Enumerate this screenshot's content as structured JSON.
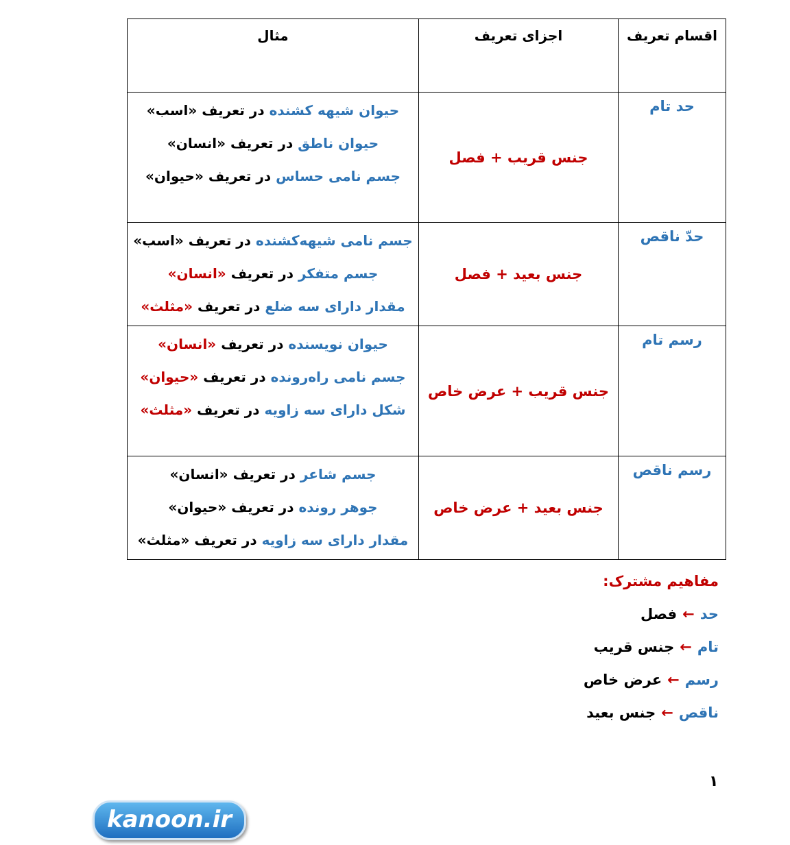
{
  "table": {
    "headers": {
      "type": "اقسام تعریف",
      "parts": "اجزای تعریف",
      "example": "مثال"
    },
    "rows": [
      {
        "type": "حد تام",
        "parts": "جنس قریب + فصل",
        "examples": [
          {
            "term": "حیوان شیهه کشنده",
            "link": "در تعریف",
            "target": "«اسب»",
            "target_color": "#000000"
          },
          {
            "term": "حیوان ناطق",
            "link": "در تعریف",
            "target": "«انسان»",
            "target_color": "#000000"
          },
          {
            "term": "جسم نامی حساس",
            "link": "در تعریف",
            "target": "«حیوان»",
            "target_color": "#000000"
          }
        ]
      },
      {
        "type": "حدّ ناقص",
        "parts": "جنس بعید + فصل",
        "examples": [
          {
            "term": "جسم نامی شیهه‌کشنده",
            "link": "در تعریف",
            "target": "«اسب»",
            "target_color": "#000000"
          },
          {
            "term": "جسم متفکر",
            "link": "در تعریف",
            "target": "«انسان»",
            "target_color": "#c00000"
          },
          {
            "term": "مقدار دارای سه ضلع",
            "link": "در تعریف",
            "target": "«مثلث»",
            "target_color": "#c00000"
          }
        ]
      },
      {
        "type": "رسم تام",
        "parts": "جنس قریب + عرض خاص",
        "examples": [
          {
            "term": "حیوان نویسنده",
            "link": "در تعریف",
            "target": "«انسان»",
            "target_color": "#c00000"
          },
          {
            "term": "جسم نامی راه‌رونده",
            "link": "در تعریف",
            "target": "«حیوان»",
            "target_color": "#c00000"
          },
          {
            "term": "شکل دارای سه زاویه",
            "link": "در تعریف",
            "target": "«مثلث»",
            "target_color": "#c00000"
          }
        ]
      },
      {
        "type": "رسم ناقص",
        "parts": "جنس بعید + عرض خاص",
        "examples": [
          {
            "term": "جسم شاعر",
            "link": "در تعریف",
            "target": "«انسان»",
            "target_color": "#000000"
          },
          {
            "term": "جوهر رونده",
            "link": "در تعریف",
            "target": "«حیوان»",
            "target_color": "#000000"
          },
          {
            "term": "مقدار دارای سه زاویه",
            "link": "در تعریف",
            "target": "«مثلث»",
            "target_color": "#000000"
          }
        ]
      }
    ]
  },
  "notes": {
    "title": "مفاهیم مشترک:",
    "items": [
      {
        "key": "حد",
        "arrow": "←",
        "value": "فصل"
      },
      {
        "key": "تام",
        "arrow": "←",
        "value": "جنس قریب"
      },
      {
        "key": "رسم",
        "arrow": "←",
        "value": "عرض خاص"
      },
      {
        "key": "ناقص",
        "arrow": "←",
        "value": "جنس بعید"
      }
    ]
  },
  "page_number": "۱",
  "logo_text": "kanoon.ir",
  "colors": {
    "blue": "#2e74b5",
    "red": "#c00000",
    "black": "#000000"
  }
}
